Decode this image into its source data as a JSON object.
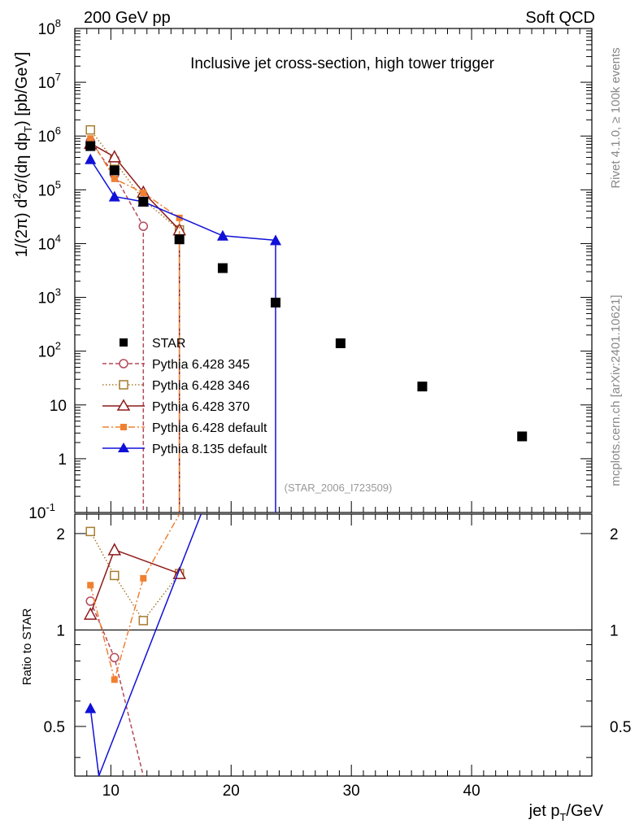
{
  "header": {
    "left": "200 GeV pp",
    "right": "Soft QCD"
  },
  "side_labels": {
    "rivet": "Rivet 4.1.0, ≥ 100k events",
    "mcplots": "mcplots.cern.ch [arXiv:2401.10621]"
  },
  "chart_data": [
    {
      "type": "scatter",
      "panel": "main",
      "title": "Inclusive jet cross-section, high tower trigger",
      "analysis_id": "(STAR_2006_I723509)",
      "xlabel": "jet p_T/GeV",
      "ylabel": "1/(2π) d²σ/(dη dp_T) [pb/GeV]",
      "xlim": [
        7,
        50
      ],
      "ylim": [
        0.1,
        100000000
      ],
      "yscale": "log",
      "x_ticks": [
        "10",
        "20",
        "30",
        "40"
      ],
      "y_ticks": [
        "10^8",
        "10^7",
        "10^6",
        "10^5",
        "10^4",
        "10^3",
        "10^2",
        "10",
        "1",
        "10^-1"
      ],
      "legend_position": "middle-left",
      "series": [
        {
          "name": "STAR",
          "color": "#000000",
          "marker": "square-filled",
          "line": "none",
          "x": [
            8.3,
            10.3,
            12.7,
            15.7,
            19.3,
            23.7,
            29.1,
            35.9,
            44.2
          ],
          "y": [
            650000,
            230000,
            60000,
            12000,
            3500,
            800,
            140,
            22,
            2.6
          ]
        },
        {
          "name": "Pythia 6.428 345",
          "color": "#b24a5a",
          "marker": "circle-open",
          "line": "dashed",
          "x": [
            8.3,
            10.3,
            12.7
          ],
          "y": [
            800000,
            190000,
            21000
          ]
        },
        {
          "name": "Pythia 6.428 346",
          "color": "#a67c30",
          "marker": "square-open",
          "line": "dotted",
          "x": [
            8.3,
            10.3,
            12.7,
            15.7
          ],
          "y": [
            1300000,
            340000,
            65000,
            18000
          ]
        },
        {
          "name": "Pythia 6.428 370",
          "color": "#8e1a1a",
          "marker": "triangle-open",
          "line": "solid",
          "x": [
            8.3,
            10.3,
            12.7,
            15.7
          ],
          "y": [
            730000,
            410000,
            90000,
            18000
          ]
        },
        {
          "name": "Pythia 6.428 default",
          "color": "#f08030",
          "marker": "square-filled-small",
          "line": "dashdot",
          "x": [
            8.3,
            10.3,
            12.7,
            15.7
          ],
          "y": [
            900000,
            160000,
            88000,
            30000
          ]
        },
        {
          "name": "Pythia 8.135 default",
          "color": "#1010d8",
          "marker": "triangle-filled",
          "line": "solid",
          "x": [
            8.3,
            10.3,
            12.7,
            19.3,
            23.7
          ],
          "y": [
            370000,
            75000,
            60000,
            14000,
            11500
          ]
        }
      ]
    },
    {
      "type": "line",
      "panel": "ratio",
      "xlabel": "jet p_T/GeV",
      "ylabel": "Ratio to STAR",
      "xlim": [
        7,
        50
      ],
      "ylim": [
        0.35,
        2.3
      ],
      "yscale": "log",
      "y_ticks_left": [
        "2",
        "1",
        "0.5"
      ],
      "y_ticks_right": [
        "2",
        "1",
        "0.5"
      ],
      "reference_line": 1,
      "series": [
        {
          "name": "Pythia 6.428 345",
          "x": [
            8.3,
            10.3,
            12.7
          ],
          "y": [
            1.23,
            0.82,
            0.35
          ]
        },
        {
          "name": "Pythia 6.428 346",
          "x": [
            8.3,
            10.3,
            12.7,
            15.7
          ],
          "y": [
            2.03,
            1.48,
            1.07,
            1.5
          ]
        },
        {
          "name": "Pythia 6.428 370",
          "x": [
            8.3,
            10.3,
            15.7
          ],
          "y": [
            1.12,
            1.78,
            1.5
          ]
        },
        {
          "name": "Pythia 6.428 default",
          "x": [
            8.3,
            10.3,
            12.7,
            15.7
          ],
          "y": [
            1.38,
            0.7,
            1.45,
            2.3
          ]
        },
        {
          "name": "Pythia 8.135 default",
          "x": [
            8.3,
            9.0,
            17.5
          ],
          "y": [
            0.57,
            0.35,
            2.3
          ]
        }
      ]
    }
  ]
}
